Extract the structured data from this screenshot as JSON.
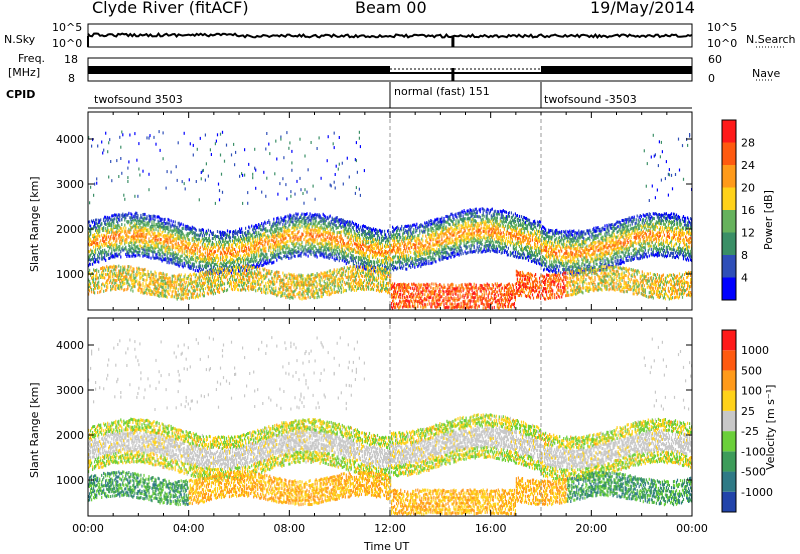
{
  "header": {
    "station": "Clyde River (fitACF)",
    "beam": "Beam 00",
    "date": "19/May/2014"
  },
  "sidebar_labels": {
    "nsky": "N.Sky",
    "freq_line1": "Freq.",
    "freq_line2": "[MHz]",
    "cpid": "CPID",
    "nsearch": "N.Search",
    "nave": "Nave"
  },
  "chart_data": [
    {
      "type": "line",
      "name_left": "N.Sky",
      "name_right": "N.Search",
      "y_ticks_left": [
        "10^5",
        "10^0"
      ],
      "y_ticks_right": [
        "10^5",
        "10^0"
      ]
    },
    {
      "type": "line",
      "name_left": "Freq. [MHz]",
      "name_right": "Nave",
      "y_ticks_left": [
        "18",
        "8"
      ],
      "y_ticks_right": [
        "60",
        "0"
      ]
    },
    {
      "type": "table",
      "name": "CPID",
      "segments": [
        {
          "label": "twofsound 3503",
          "start_h": 0,
          "end_h": 12
        },
        {
          "label": "normal (fast) 151",
          "start_h": 12,
          "end_h": 18
        },
        {
          "label": "twofsound -3503",
          "start_h": 18,
          "end_h": 24
        }
      ]
    },
    {
      "type": "heatmap",
      "variable": "power",
      "ylabel": "Slant Range [km]",
      "ylim": [
        200,
        4600
      ],
      "y_ticks": [
        1000,
        2000,
        3000,
        4000
      ],
      "xlim": [
        0,
        24
      ],
      "colorbar_label": "Power [dB]",
      "colorbar_ticks": [
        4,
        8,
        12,
        16,
        20,
        24,
        28
      ],
      "colorbar_colors": [
        "#0000ff",
        "#2f4fb8",
        "#3a8f66",
        "#66b25c",
        "#ffd21a",
        "#ff9a1a",
        "#ff5a10",
        "#ff1a1a"
      ],
      "mode_boundaries_h": [
        12,
        18
      ]
    },
    {
      "type": "heatmap",
      "variable": "velocity",
      "ylabel": "Slant Range [km]",
      "ylim": [
        200,
        4600
      ],
      "y_ticks": [
        1000,
        2000,
        3000,
        4000
      ],
      "xlim": [
        0,
        24
      ],
      "colorbar_label": "Velocity [m s⁻¹]",
      "colorbar_ticks": [
        "1000",
        "500",
        "100",
        "25",
        "-25",
        "-100",
        "-500",
        "-1000"
      ],
      "colorbar_colors": [
        "#2244aa",
        "#2f7a86",
        "#3d9c5a",
        "#6bcf3a",
        "#c8c8c8",
        "#ffd21a",
        "#ff9a1a",
        "#ff5a10",
        "#ff1a1a"
      ],
      "xlabel": "Time UT",
      "x_ticks": [
        "00:00",
        "04:00",
        "08:00",
        "12:00",
        "16:00",
        "20:00",
        "00:00"
      ],
      "mode_boundaries_h": [
        12,
        18
      ]
    }
  ]
}
